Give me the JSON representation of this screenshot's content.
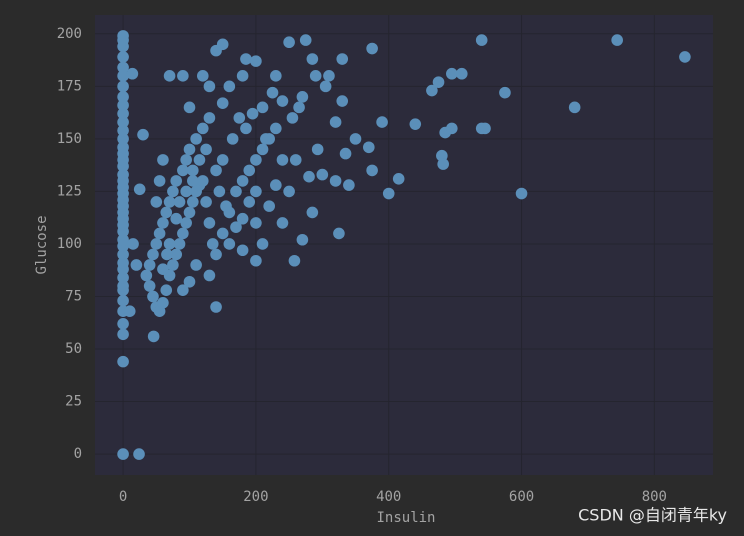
{
  "chart_data": {
    "type": "scatter",
    "x_label": "Insulin",
    "y_label": "Glucose",
    "watermark": "CSDN @自闭青年ky",
    "color": "#5b8fb9",
    "grid": true,
    "xlim": [
      -42.3,
      888.3
    ],
    "ylim": [
      -9.95,
      208.95
    ],
    "xticks": [
      0,
      200,
      400,
      600,
      800
    ],
    "yticks": [
      0,
      25,
      50,
      75,
      100,
      125,
      150,
      175,
      200
    ],
    "x": [
      0,
      0,
      0,
      0,
      0,
      0,
      0,
      0,
      0,
      0,
      0,
      0,
      0,
      0,
      0,
      0,
      0,
      0,
      0,
      0,
      0,
      0,
      0,
      0,
      0,
      0,
      0,
      0,
      0,
      0,
      0,
      0,
      0,
      0,
      0,
      0,
      0,
      0,
      0,
      0,
      0,
      24,
      14,
      25,
      30,
      46,
      70,
      90,
      140,
      150,
      185,
      200,
      250,
      275,
      285,
      330,
      375,
      325,
      258,
      200,
      180,
      210,
      270,
      285,
      293,
      280,
      300,
      310,
      340,
      350,
      370,
      375,
      390,
      400,
      415,
      440,
      465,
      475,
      480,
      482,
      485,
      495,
      495,
      510,
      540,
      540,
      545,
      575,
      600,
      680,
      744,
      846,
      330,
      320,
      335,
      265,
      240,
      225,
      210,
      160,
      150,
      130,
      120,
      110,
      100,
      95,
      90,
      80,
      75,
      70,
      65,
      60,
      55,
      50,
      45,
      40,
      40,
      45,
      50,
      55,
      60,
      65,
      70,
      75,
      80,
      85,
      90,
      95,
      100,
      105,
      110,
      115,
      120,
      125,
      130,
      135,
      140,
      150,
      160,
      170,
      180,
      190,
      200,
      210,
      220,
      230,
      240,
      250,
      160,
      170,
      180,
      190,
      200,
      130,
      110,
      100,
      90,
      150,
      165,
      175,
      185,
      195,
      140,
      125,
      115,
      105,
      200,
      220,
      230,
      145,
      155,
      60,
      35,
      20,
      15,
      10,
      120,
      130,
      100,
      180,
      215,
      255,
      270,
      290,
      305,
      320,
      260,
      230,
      240,
      140,
      80,
      70,
      66,
      85,
      95,
      105,
      60,
      55,
      50
    ],
    "values": [
      0,
      44,
      57,
      62,
      68,
      73,
      78,
      80,
      84,
      88,
      91,
      95,
      99,
      102,
      106,
      109,
      112,
      115,
      118,
      121,
      124,
      127,
      130,
      133,
      137,
      140,
      143,
      146,
      150,
      154,
      158,
      162,
      166,
      170,
      175,
      180,
      184,
      189,
      194,
      197,
      199,
      0,
      181,
      126,
      152,
      56,
      180,
      180,
      192,
      195,
      188,
      187,
      196,
      197,
      188,
      188,
      193,
      105,
      92,
      92,
      97,
      100,
      102,
      115,
      145,
      132,
      133,
      180,
      128,
      150,
      146,
      135,
      158,
      124,
      131,
      157,
      173,
      177,
      142,
      138,
      153,
      155,
      181,
      181,
      197,
      155,
      155,
      172,
      124,
      165,
      197,
      189,
      168,
      158,
      143,
      165,
      168,
      172,
      165,
      175,
      167,
      160,
      155,
      150,
      145,
      140,
      135,
      130,
      125,
      120,
      115,
      110,
      105,
      100,
      95,
      90,
      80,
      75,
      70,
      68,
      72,
      78,
      85,
      90,
      95,
      100,
      105,
      110,
      115,
      120,
      125,
      128,
      130,
      120,
      110,
      100,
      95,
      105,
      115,
      125,
      130,
      135,
      140,
      145,
      150,
      155,
      140,
      125,
      100,
      108,
      112,
      120,
      125,
      85,
      90,
      82,
      78,
      140,
      150,
      160,
      155,
      162,
      135,
      145,
      140,
      135,
      110,
      118,
      128,
      125,
      118,
      88,
      85,
      90,
      100,
      68,
      180,
      175,
      165,
      180,
      150,
      160,
      170,
      180,
      175,
      130,
      140,
      180,
      110,
      70,
      112,
      100,
      95,
      120,
      125,
      130,
      140,
      130,
      120
    ]
  }
}
